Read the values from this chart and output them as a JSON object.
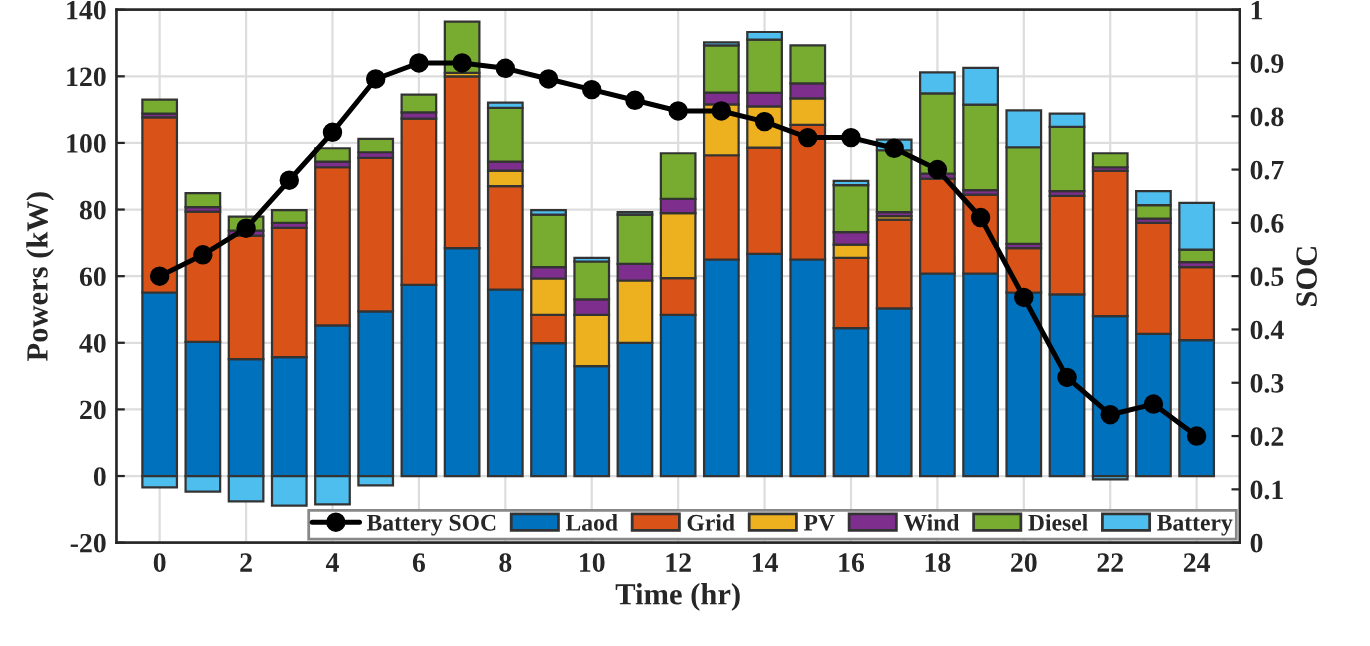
{
  "chart_data": {
    "type": "bar",
    "stacked": true,
    "xlabel": "Time (hr)",
    "ylabel": "Powers (kW)",
    "y2label": "SOC",
    "x": [
      0,
      1,
      2,
      3,
      4,
      5,
      6,
      7,
      8,
      9,
      10,
      11,
      12,
      13,
      14,
      15,
      16,
      17,
      18,
      19,
      20,
      21,
      22,
      23,
      24
    ],
    "xlim": [
      -1,
      25
    ],
    "xticks": [
      0,
      2,
      4,
      6,
      8,
      10,
      12,
      14,
      16,
      18,
      20,
      22,
      24
    ],
    "ylim": [
      -20,
      140
    ],
    "yticks": [
      -20,
      0,
      20,
      40,
      60,
      80,
      100,
      120,
      140
    ],
    "y2lim": [
      0,
      1
    ],
    "y2ticks": [
      0,
      0.1,
      0.2,
      0.3,
      0.4,
      0.5,
      0.6,
      0.7,
      0.8,
      0.9,
      1
    ],
    "grid": true,
    "legend": "bottom right",
    "series": [
      {
        "name": "Battery SOC",
        "type": "line",
        "axis": "y2",
        "color": "#000000",
        "marker": "circle",
        "line_style": "solid",
        "values": [
          0.5,
          0.54,
          0.59,
          0.68,
          0.77,
          0.87,
          0.9,
          0.9,
          0.89,
          0.87,
          0.85,
          0.83,
          0.81,
          0.81,
          0.79,
          0.76,
          0.76,
          0.74,
          0.7,
          0.61,
          0.46,
          0.31,
          0.24,
          0.26,
          0.2
        ]
      },
      {
        "name": "Laod",
        "color": "#0072bd",
        "values": [
          55.1,
          40.3,
          35.1,
          35.7,
          45.2,
          49.4,
          57.4,
          68.4,
          56,
          39.9,
          33,
          40,
          48.4,
          65,
          66.7,
          65,
          44.4,
          50.3,
          60.8,
          60.8,
          55.1,
          54.5,
          48,
          42.7,
          40.8
        ]
      },
      {
        "name": "Grid",
        "color": "#d95319",
        "values": [
          52.6,
          39.1,
          37.1,
          38.8,
          47.5,
          46.1,
          49.9,
          51.6,
          31,
          8.5,
          null,
          null,
          11,
          31.3,
          31.9,
          40.4,
          21.1,
          26.7,
          28.5,
          23.7,
          13.3,
          29.6,
          43.6,
          33.3,
          21.9
        ]
      },
      {
        "name": "PV",
        "color": "#edb120",
        "values": [
          null,
          null,
          null,
          null,
          null,
          null,
          null,
          1,
          4.7,
          10.9,
          15.4,
          18.7,
          19.5,
          15.3,
          12.4,
          8,
          4,
          1,
          null,
          null,
          null,
          null,
          null,
          null,
          null
        ]
      },
      {
        "name": "Wind",
        "color": "#7e2f8e",
        "values": [
          1.1,
          1.3,
          1.5,
          1.5,
          1.7,
          1.7,
          1.9,
          null,
          2.7,
          3.4,
          4.6,
          5,
          4.3,
          3.5,
          4,
          4.5,
          3.7,
          1.2,
          1.5,
          1.3,
          1.3,
          1.4,
          1.1,
          1.3,
          1.5
        ]
      },
      {
        "name": "Diesel",
        "color": "#77ac30",
        "values": [
          4.2,
          4.2,
          4.2,
          3.8,
          4,
          4,
          5.3,
          15.4,
          16.1,
          15.8,
          11.4,
          14.8,
          13.7,
          14.2,
          16,
          11.4,
          14.1,
          18.6,
          24.1,
          25.7,
          29,
          19.3,
          4.2,
          4,
          3.8
        ]
      },
      {
        "name": "Battery",
        "color": "#4dbeee",
        "values": [
          -3.4,
          -4.7,
          -7.6,
          -8.9,
          -8.5,
          -2.8,
          null,
          null,
          1.6,
          1.3,
          1.1,
          0.7,
          null,
          0.9,
          2.3,
          null,
          1.3,
          3.2,
          6.3,
          11,
          11.1,
          4,
          -1,
          4.2,
          14
        ]
      }
    ]
  }
}
